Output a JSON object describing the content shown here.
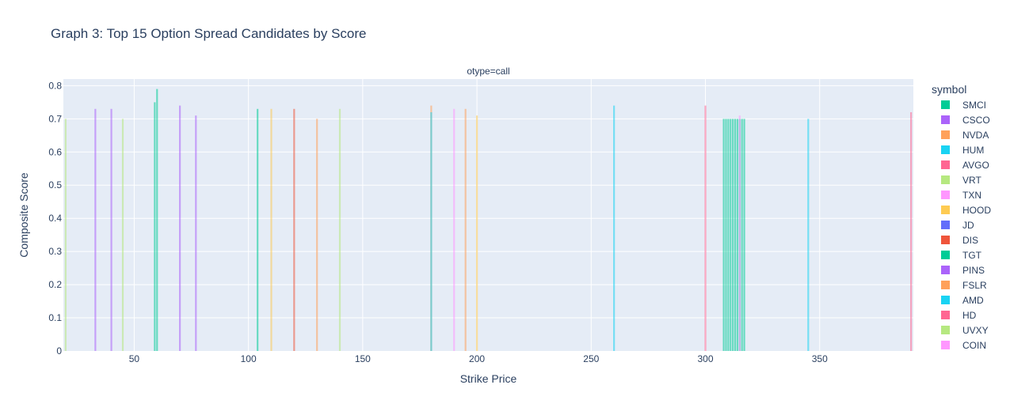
{
  "chart_data": {
    "type": "bar",
    "title": "Graph 3: Top 15 Option Spread Candidates by Score",
    "facet_label": "otype=call",
    "xlabel": "Strike Price",
    "ylabel": "Composite Score",
    "xlim": [
      19,
      391
    ],
    "ylim": [
      0,
      0.82
    ],
    "x_ticks": [
      50,
      100,
      150,
      200,
      250,
      300,
      350
    ],
    "y_ticks": [
      0,
      0.1,
      0.2,
      0.3,
      0.4,
      0.5,
      0.6,
      0.7,
      0.8
    ],
    "grid": true,
    "legend_title": "symbol",
    "legend_placement": "right",
    "series": [
      {
        "name": "SMCI",
        "color": "#00cc96",
        "points": [
          {
            "x": 104,
            "y": 0.73
          },
          {
            "x": 59,
            "y": 0.75
          },
          {
            "x": 60,
            "y": 0.79
          },
          {
            "x": 308,
            "y": 0.7
          },
          {
            "x": 309,
            "y": 0.7
          },
          {
            "x": 310,
            "y": 0.7
          },
          {
            "x": 311,
            "y": 0.7
          },
          {
            "x": 312,
            "y": 0.7
          },
          {
            "x": 313,
            "y": 0.7
          },
          {
            "x": 314,
            "y": 0.7
          },
          {
            "x": 315,
            "y": 0.7
          },
          {
            "x": 316,
            "y": 0.7
          },
          {
            "x": 317,
            "y": 0.7
          }
        ]
      },
      {
        "name": "CSCO",
        "color": "#ab63fa",
        "points": [
          {
            "x": 33,
            "y": 0.73
          },
          {
            "x": 40,
            "y": 0.73
          },
          {
            "x": 70,
            "y": 0.74
          },
          {
            "x": 77,
            "y": 0.71
          }
        ]
      },
      {
        "name": "NVDA",
        "color": "#ffa15a",
        "points": [
          {
            "x": 130,
            "y": 0.7
          },
          {
            "x": 180,
            "y": 0.74
          },
          {
            "x": 195,
            "y": 0.73
          }
        ]
      },
      {
        "name": "HUM",
        "color": "#19d3f3",
        "points": [
          {
            "x": 180,
            "y": 0.72
          },
          {
            "x": 260,
            "y": 0.74
          },
          {
            "x": 345,
            "y": 0.7
          }
        ]
      },
      {
        "name": "AVGO",
        "color": "#ff6692",
        "points": [
          {
            "x": 300,
            "y": 0.74
          },
          {
            "x": 390,
            "y": 0.72
          }
        ]
      },
      {
        "name": "VRT",
        "color": "#b6e880",
        "points": [
          {
            "x": 45,
            "y": 0.7
          },
          {
            "x": 140,
            "y": 0.73
          }
        ]
      },
      {
        "name": "TXN",
        "color": "#ff97ff",
        "points": [
          {
            "x": 190,
            "y": 0.73
          },
          {
            "x": 315,
            "y": 0.71
          }
        ]
      },
      {
        "name": "HOOD",
        "color": "#fecb52",
        "points": [
          {
            "x": 110,
            "y": 0.73
          },
          {
            "x": 200,
            "y": 0.71
          }
        ]
      },
      {
        "name": "JD",
        "color": "#636efa",
        "points": []
      },
      {
        "name": "DIS",
        "color": "#ef553b",
        "points": [
          {
            "x": 120,
            "y": 0.73
          }
        ]
      },
      {
        "name": "TGT",
        "color": "#00cc96",
        "points": []
      },
      {
        "name": "PINS",
        "color": "#ab63fa",
        "points": []
      },
      {
        "name": "FSLR",
        "color": "#ffa15a",
        "points": []
      },
      {
        "name": "AMD",
        "color": "#19d3f3",
        "points": []
      },
      {
        "name": "HD",
        "color": "#ff6692",
        "points": []
      },
      {
        "name": "UVXY",
        "color": "#b6e880",
        "points": [
          {
            "x": 20,
            "y": 0.7
          }
        ]
      },
      {
        "name": "COIN",
        "color": "#ff97ff",
        "points": []
      }
    ]
  }
}
